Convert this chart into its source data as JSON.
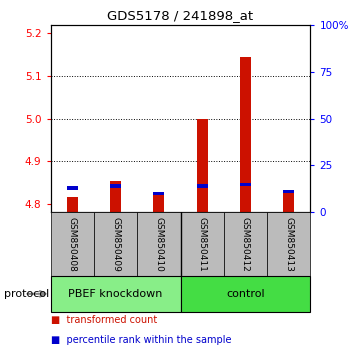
{
  "title": "GDS5178 / 241898_at",
  "samples": [
    "GSM850408",
    "GSM850409",
    "GSM850410",
    "GSM850411",
    "GSM850412",
    "GSM850413"
  ],
  "transformed_count": [
    4.815,
    4.853,
    4.823,
    5.0,
    5.145,
    4.832
  ],
  "percentile_rank": [
    13,
    14,
    10,
    14,
    15,
    11
  ],
  "ylim_left": [
    4.78,
    5.22
  ],
  "ylim_right": [
    0,
    100
  ],
  "yticks_left": [
    4.8,
    4.9,
    5.0,
    5.1,
    5.2
  ],
  "yticks_right": [
    0,
    25,
    50,
    75,
    100
  ],
  "ytick_labels_right": [
    "0",
    "25",
    "50",
    "75",
    "100%"
  ],
  "groups": [
    {
      "label": "PBEF knockdown",
      "indices": [
        0,
        1,
        2
      ],
      "color": "#88ee88"
    },
    {
      "label": "control",
      "indices": [
        3,
        4,
        5
      ],
      "color": "#44dd44"
    }
  ],
  "bar_base": 4.78,
  "bar_width": 0.25,
  "red_color": "#cc1100",
  "blue_color": "#0000cc",
  "blue_bar_height": 0.008,
  "sample_bg_color": "#bbbbbb",
  "protocol_arrow_color": "#888888",
  "legend_items": [
    {
      "color": "#cc1100",
      "label": "transformed count"
    },
    {
      "color": "#0000cc",
      "label": "percentile rank within the sample"
    }
  ],
  "grid_lines": [
    4.9,
    5.0,
    5.1
  ],
  "group_divider": 2.5,
  "n_samples": 6,
  "n_group1": 3,
  "n_group2": 3
}
